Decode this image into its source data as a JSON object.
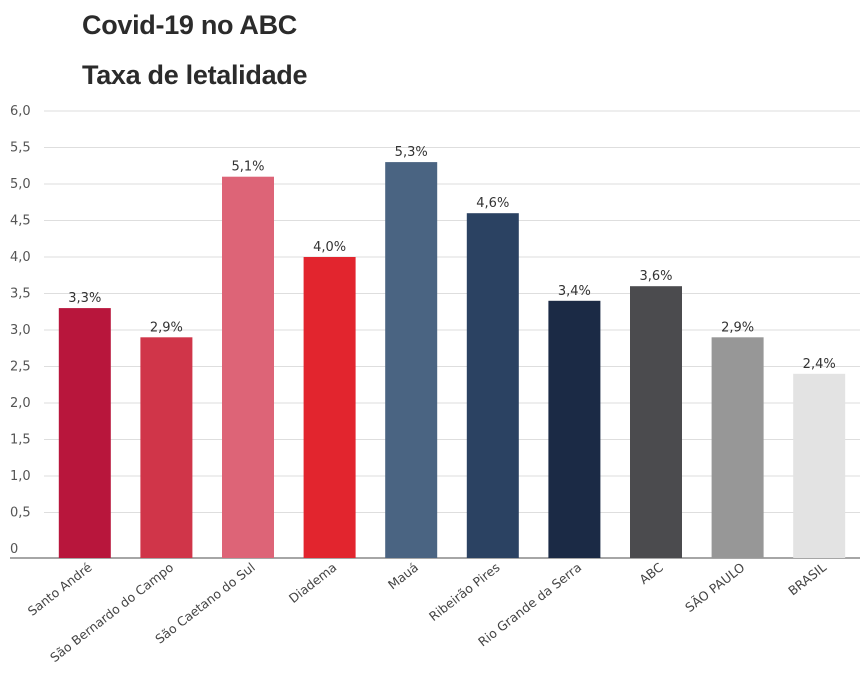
{
  "chart_data": {
    "type": "bar",
    "title": "Covid-19 no ABC",
    "subtitle": "Taxa de letalidade",
    "xlabel": "",
    "ylabel": "",
    "ylim": [
      0,
      6
    ],
    "yticks": [
      "0",
      "0,5",
      "1,0",
      "1,5",
      "2,0",
      "2,5",
      "3,0",
      "3,5",
      "4,0",
      "4,5",
      "5,0",
      "5,5",
      "6,0"
    ],
    "grid": true,
    "categories": [
      "Santo André",
      "São Bernardo do Campo",
      "São Caetano do Sul",
      "Diadema",
      "Mauá",
      "Ribeirão Pires",
      "Rio Grande da Serra",
      "ABC",
      "SÃO PAULO",
      "BRASIL"
    ],
    "values": [
      3.3,
      2.9,
      5.1,
      4.0,
      5.3,
      4.6,
      3.4,
      3.6,
      2.9,
      2.4
    ],
    "value_labels": [
      "3,3%",
      "2,9%",
      "5,1%",
      "4,0%",
      "5,3%",
      "4,6%",
      "3,4%",
      "3,6%",
      "2,9%",
      "2,4%"
    ],
    "colors": [
      "#b8163c",
      "#d03549",
      "#dd6477",
      "#e2252e",
      "#4a6482",
      "#2b4262",
      "#1b2a45",
      "#4b4b4e",
      "#979797",
      "#e3e3e3"
    ]
  }
}
